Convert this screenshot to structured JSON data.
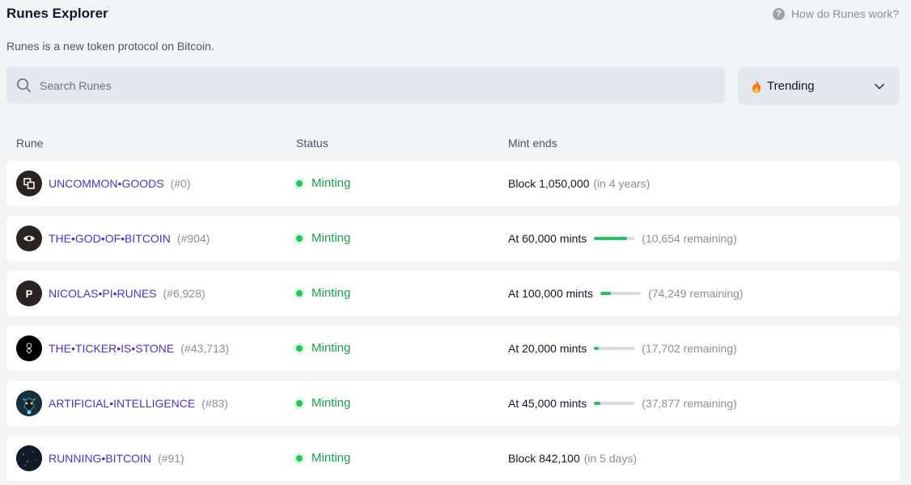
{
  "header": {
    "title": "Runes Explorer",
    "help_label": "How do Runes work?",
    "help_icon": "?",
    "subtitle": "Runes is a new token protocol on Bitcoin."
  },
  "search": {
    "placeholder": "Search Runes",
    "value": ""
  },
  "sort": {
    "selected": "Trending",
    "icon": "flame-icon"
  },
  "columns": {
    "rune": "Rune",
    "status": "Status",
    "mint_ends": "Mint ends"
  },
  "colors": {
    "link": "#4338ca",
    "status": "#16a34a",
    "accent": "#22c55e"
  },
  "rows": [
    {
      "name": "UNCOMMON•GOODS",
      "number": "(#0)",
      "avatar": "uncommon-goods-avatar",
      "status": "Minting",
      "mint_main": "Block 1,050,000",
      "mint_note": "(in 4 years)",
      "progress": null
    },
    {
      "name": "THE•GOD•OF•BITCOIN",
      "number": "(#904)",
      "avatar": "eye-avatar",
      "status": "Minting",
      "mint_main": "At 60,000 mints",
      "mint_note": "(10,654 remaining)",
      "progress": 0.82
    },
    {
      "name": "NICOLAS•PI•RUNES",
      "number": "(#6,928)",
      "avatar": "letter-p-avatar",
      "avatar_text": "P",
      "status": "Minting",
      "mint_main": "At 100,000 mints",
      "mint_note": "(74,249 remaining)",
      "progress": 0.26
    },
    {
      "name": "THE•TICKER•IS•STONE",
      "number": "(#43,713)",
      "avatar": "ticker-stone-avatar",
      "status": "Minting",
      "mint_main": "At 20,000 mints",
      "mint_note": "(17,702 remaining)",
      "progress": 0.11
    },
    {
      "name": "ARTIFICIAL•INTELLIGENCE",
      "number": "(#83)",
      "avatar": "robot-avatar",
      "status": "Minting",
      "mint_main": "At 45,000 mints",
      "mint_note": "(37,877 remaining)",
      "progress": 0.16
    },
    {
      "name": "RUNNING•BITCOIN",
      "number": "(#91)",
      "avatar": "night-sky-avatar",
      "status": "Minting",
      "mint_main": "Block 842,100",
      "mint_note": "(in 5 days)",
      "progress": null
    }
  ]
}
